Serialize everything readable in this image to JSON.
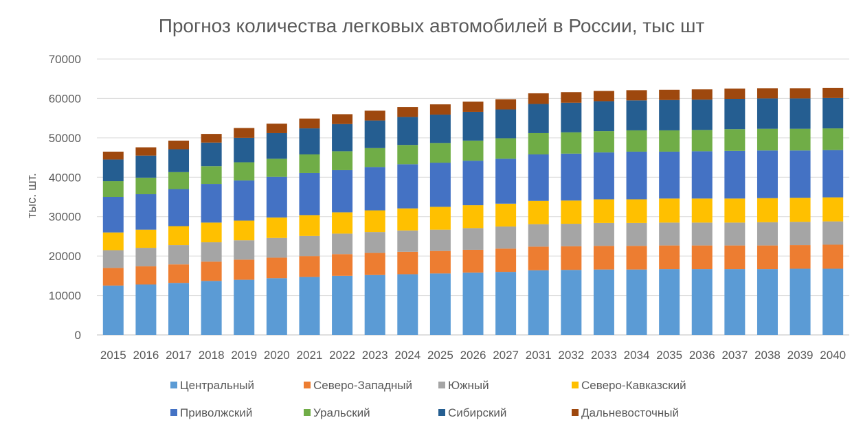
{
  "chart_data": {
    "type": "bar",
    "stacked": true,
    "title": "Прогноз количества легковых автомобилей в России, тыс шт",
    "ylabel": "тыс. шт.",
    "xlabel": "",
    "ylim": [
      0,
      70000
    ],
    "yticks": [
      0,
      10000,
      20000,
      30000,
      40000,
      50000,
      60000,
      70000
    ],
    "grid": true,
    "legend_position": "bottom",
    "categories": [
      "2015",
      "2016",
      "2017",
      "2018",
      "2019",
      "2020",
      "2021",
      "2022",
      "2023",
      "2024",
      "2025",
      "2026",
      "2027",
      "2031",
      "2032",
      "2033",
      "2034",
      "2035",
      "2036",
      "2037",
      "2038",
      "2039",
      "2040"
    ],
    "series": [
      {
        "name": "Центральный",
        "color": "#5B9BD5",
        "values": [
          12500,
          12800,
          13200,
          13700,
          14000,
          14400,
          14700,
          15000,
          15200,
          15400,
          15600,
          15800,
          16000,
          16400,
          16500,
          16600,
          16600,
          16700,
          16700,
          16700,
          16700,
          16800,
          16800
        ]
      },
      {
        "name": "Северо-Западный",
        "color": "#ED7D31",
        "values": [
          4500,
          4600,
          4700,
          4900,
          5100,
          5200,
          5300,
          5500,
          5600,
          5700,
          5700,
          5800,
          5900,
          6000,
          6000,
          6000,
          6000,
          6000,
          6000,
          6000,
          6000,
          6000,
          6100
        ]
      },
      {
        "name": "Южный",
        "color": "#A5A5A5",
        "values": [
          4500,
          4700,
          4900,
          4900,
          4900,
          5000,
          5100,
          5200,
          5300,
          5400,
          5400,
          5500,
          5600,
          5700,
          5700,
          5800,
          5800,
          5800,
          5800,
          5800,
          5900,
          5900,
          5900
        ]
      },
      {
        "name": "Северо-Кавказский",
        "color": "#FFC000",
        "values": [
          4500,
          4600,
          4800,
          5000,
          5000,
          5200,
          5300,
          5400,
          5500,
          5600,
          5800,
          5800,
          5800,
          5900,
          5900,
          6000,
          6000,
          6100,
          6100,
          6100,
          6100,
          6100,
          6100
        ]
      },
      {
        "name": "Приволжский",
        "color": "#4472C4",
        "values": [
          9000,
          9000,
          9400,
          9800,
          10200,
          10300,
          10700,
          10700,
          11000,
          11200,
          11200,
          11300,
          11400,
          11800,
          11900,
          11900,
          12100,
          11900,
          12000,
          12100,
          12100,
          12000,
          12000
        ]
      },
      {
        "name": "Уральский",
        "color": "#70AD47",
        "values": [
          4000,
          4200,
          4300,
          4500,
          4600,
          4600,
          4700,
          4800,
          4800,
          4900,
          5000,
          5100,
          5200,
          5400,
          5400,
          5400,
          5400,
          5400,
          5400,
          5500,
          5500,
          5500,
          5500
        ]
      },
      {
        "name": "Сибирский",
        "color": "#255E91",
        "values": [
          5500,
          5600,
          5800,
          6000,
          6200,
          6500,
          6600,
          6900,
          7000,
          7100,
          7200,
          7300,
          7300,
          7400,
          7500,
          7600,
          7600,
          7700,
          7700,
          7700,
          7700,
          7700,
          7700
        ]
      },
      {
        "name": "Дальневосточный",
        "color": "#9E480E",
        "values": [
          2000,
          2100,
          2200,
          2200,
          2500,
          2400,
          2500,
          2500,
          2500,
          2500,
          2600,
          2600,
          2600,
          2700,
          2700,
          2600,
          2600,
          2600,
          2600,
          2600,
          2600,
          2600,
          2600
        ]
      }
    ]
  }
}
